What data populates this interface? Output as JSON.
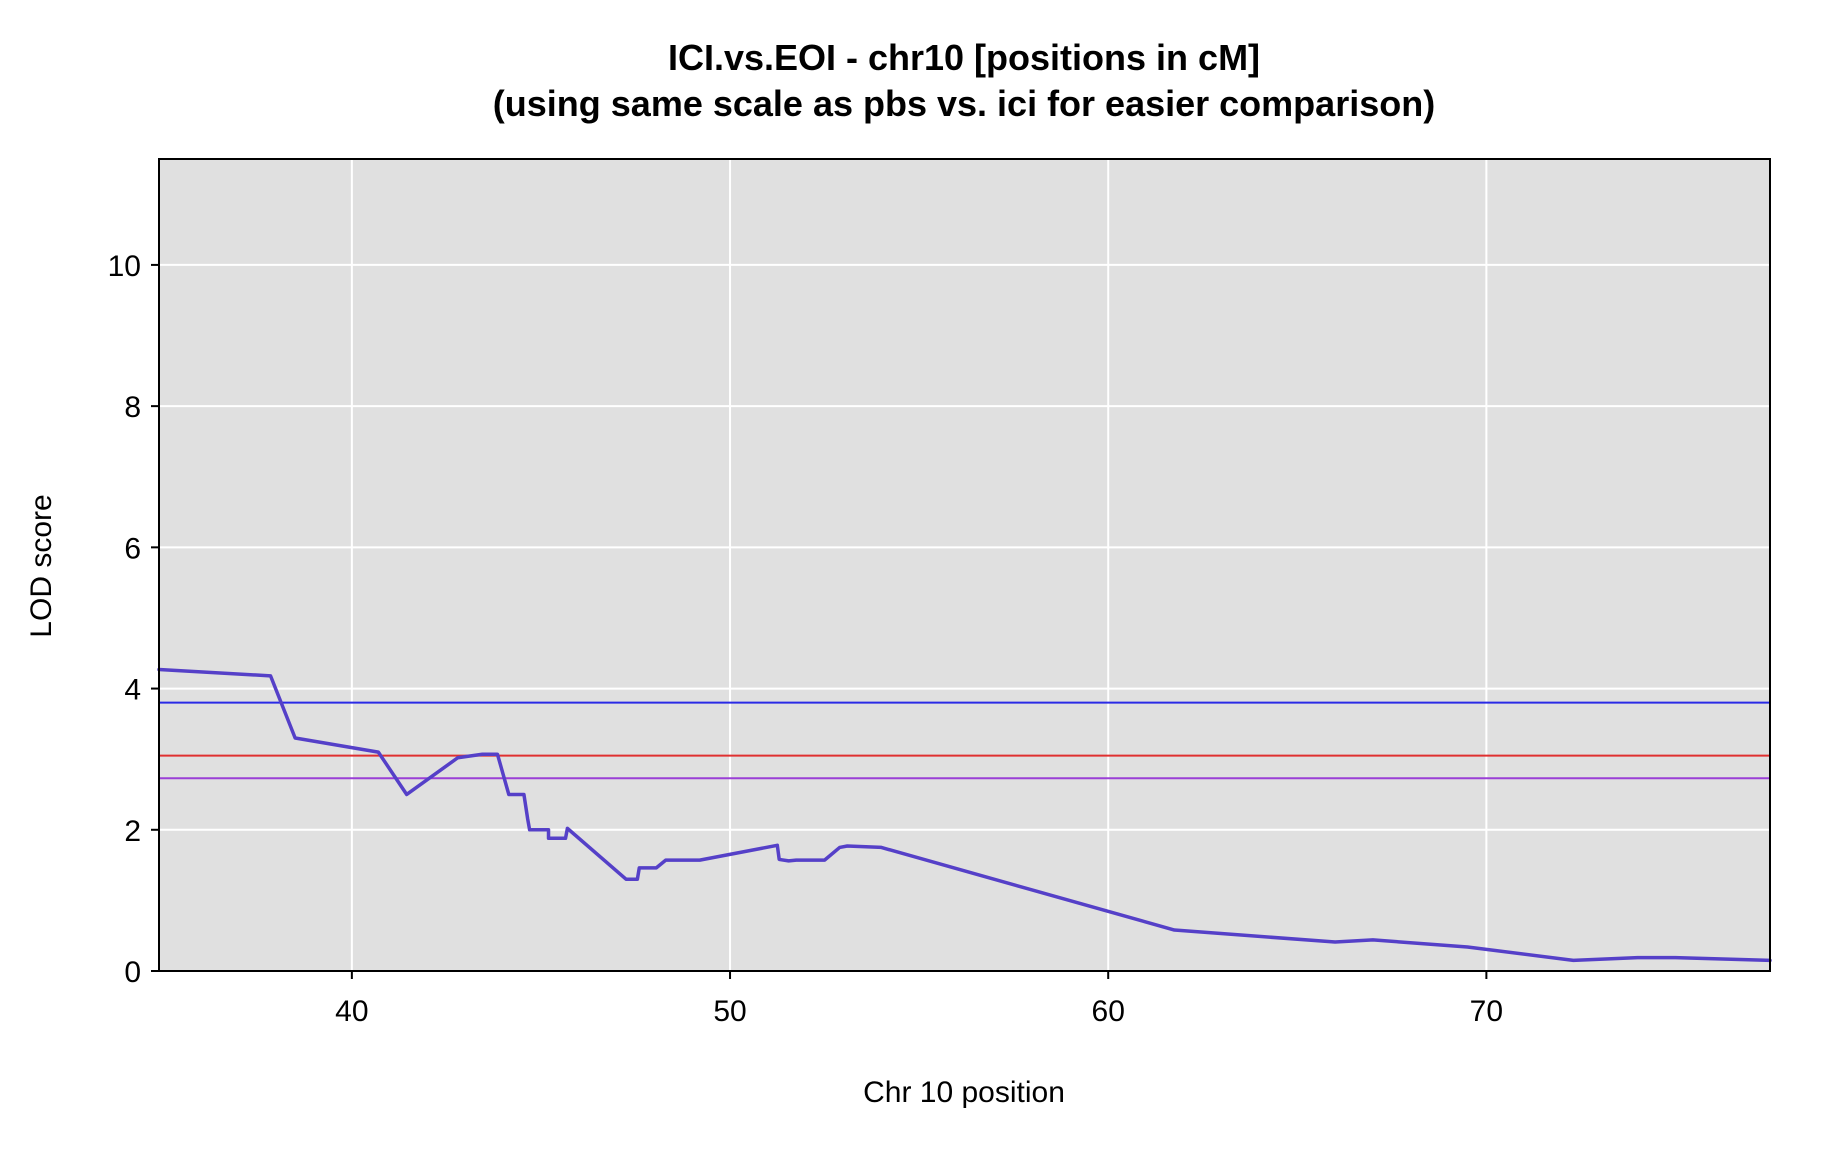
{
  "chart_data": {
    "type": "line",
    "title": "ICI.vs.EOI - chr10 [positions in cM]",
    "subtitle": "(using same scale as pbs  vs. ici for easier comparison)",
    "xlabel": "Chr 10 position",
    "ylabel": "LOD score",
    "xlim": [
      34.9,
      77.5
    ],
    "ylim": [
      0,
      11.5
    ],
    "x_ticks": [
      40,
      50,
      60,
      70
    ],
    "y_ticks": [
      0,
      2,
      4,
      6,
      8,
      10
    ],
    "grid": true,
    "legend": "none",
    "colors": {
      "panel_background": "#e0e0e0",
      "grid": "#ffffff",
      "series_line": "#5540c8",
      "threshold_blue": "#2a2ae6",
      "threshold_red": "#e03030",
      "threshold_purple": "#9a3fd6"
    },
    "thresholds": [
      {
        "value": 3.8,
        "color": "#2a2ae6"
      },
      {
        "value": 3.05,
        "color": "#e03030"
      },
      {
        "value": 2.73,
        "color": "#9a3fd6"
      }
    ],
    "series": [
      {
        "x": [
          34.9,
          37.85,
          38.5,
          40.7,
          41.45,
          42.8,
          43.45,
          43.85,
          44.15,
          44.2,
          44.55,
          44.65,
          44.7,
          45.2,
          45.2,
          45.65,
          45.7,
          47.25,
          47.55,
          47.6,
          48.05,
          48.3,
          49.2,
          51.25,
          51.3,
          51.55,
          51.75,
          52.5,
          52.9,
          53.1,
          54.0,
          61.75,
          66.0,
          67.0,
          69.5,
          72.3,
          74.0,
          75.0,
          77.5
        ],
        "y": [
          4.27,
          4.18,
          3.3,
          3.1,
          2.5,
          3.02,
          3.07,
          3.07,
          2.5,
          2.5,
          2.5,
          2.15,
          2.0,
          2.0,
          1.88,
          1.88,
          2.02,
          1.3,
          1.3,
          1.46,
          1.46,
          1.57,
          1.57,
          1.78,
          1.58,
          1.56,
          1.57,
          1.57,
          1.75,
          1.77,
          1.75,
          0.58,
          0.41,
          0.44,
          0.34,
          0.15,
          0.19,
          0.19,
          0.15
        ]
      }
    ]
  }
}
